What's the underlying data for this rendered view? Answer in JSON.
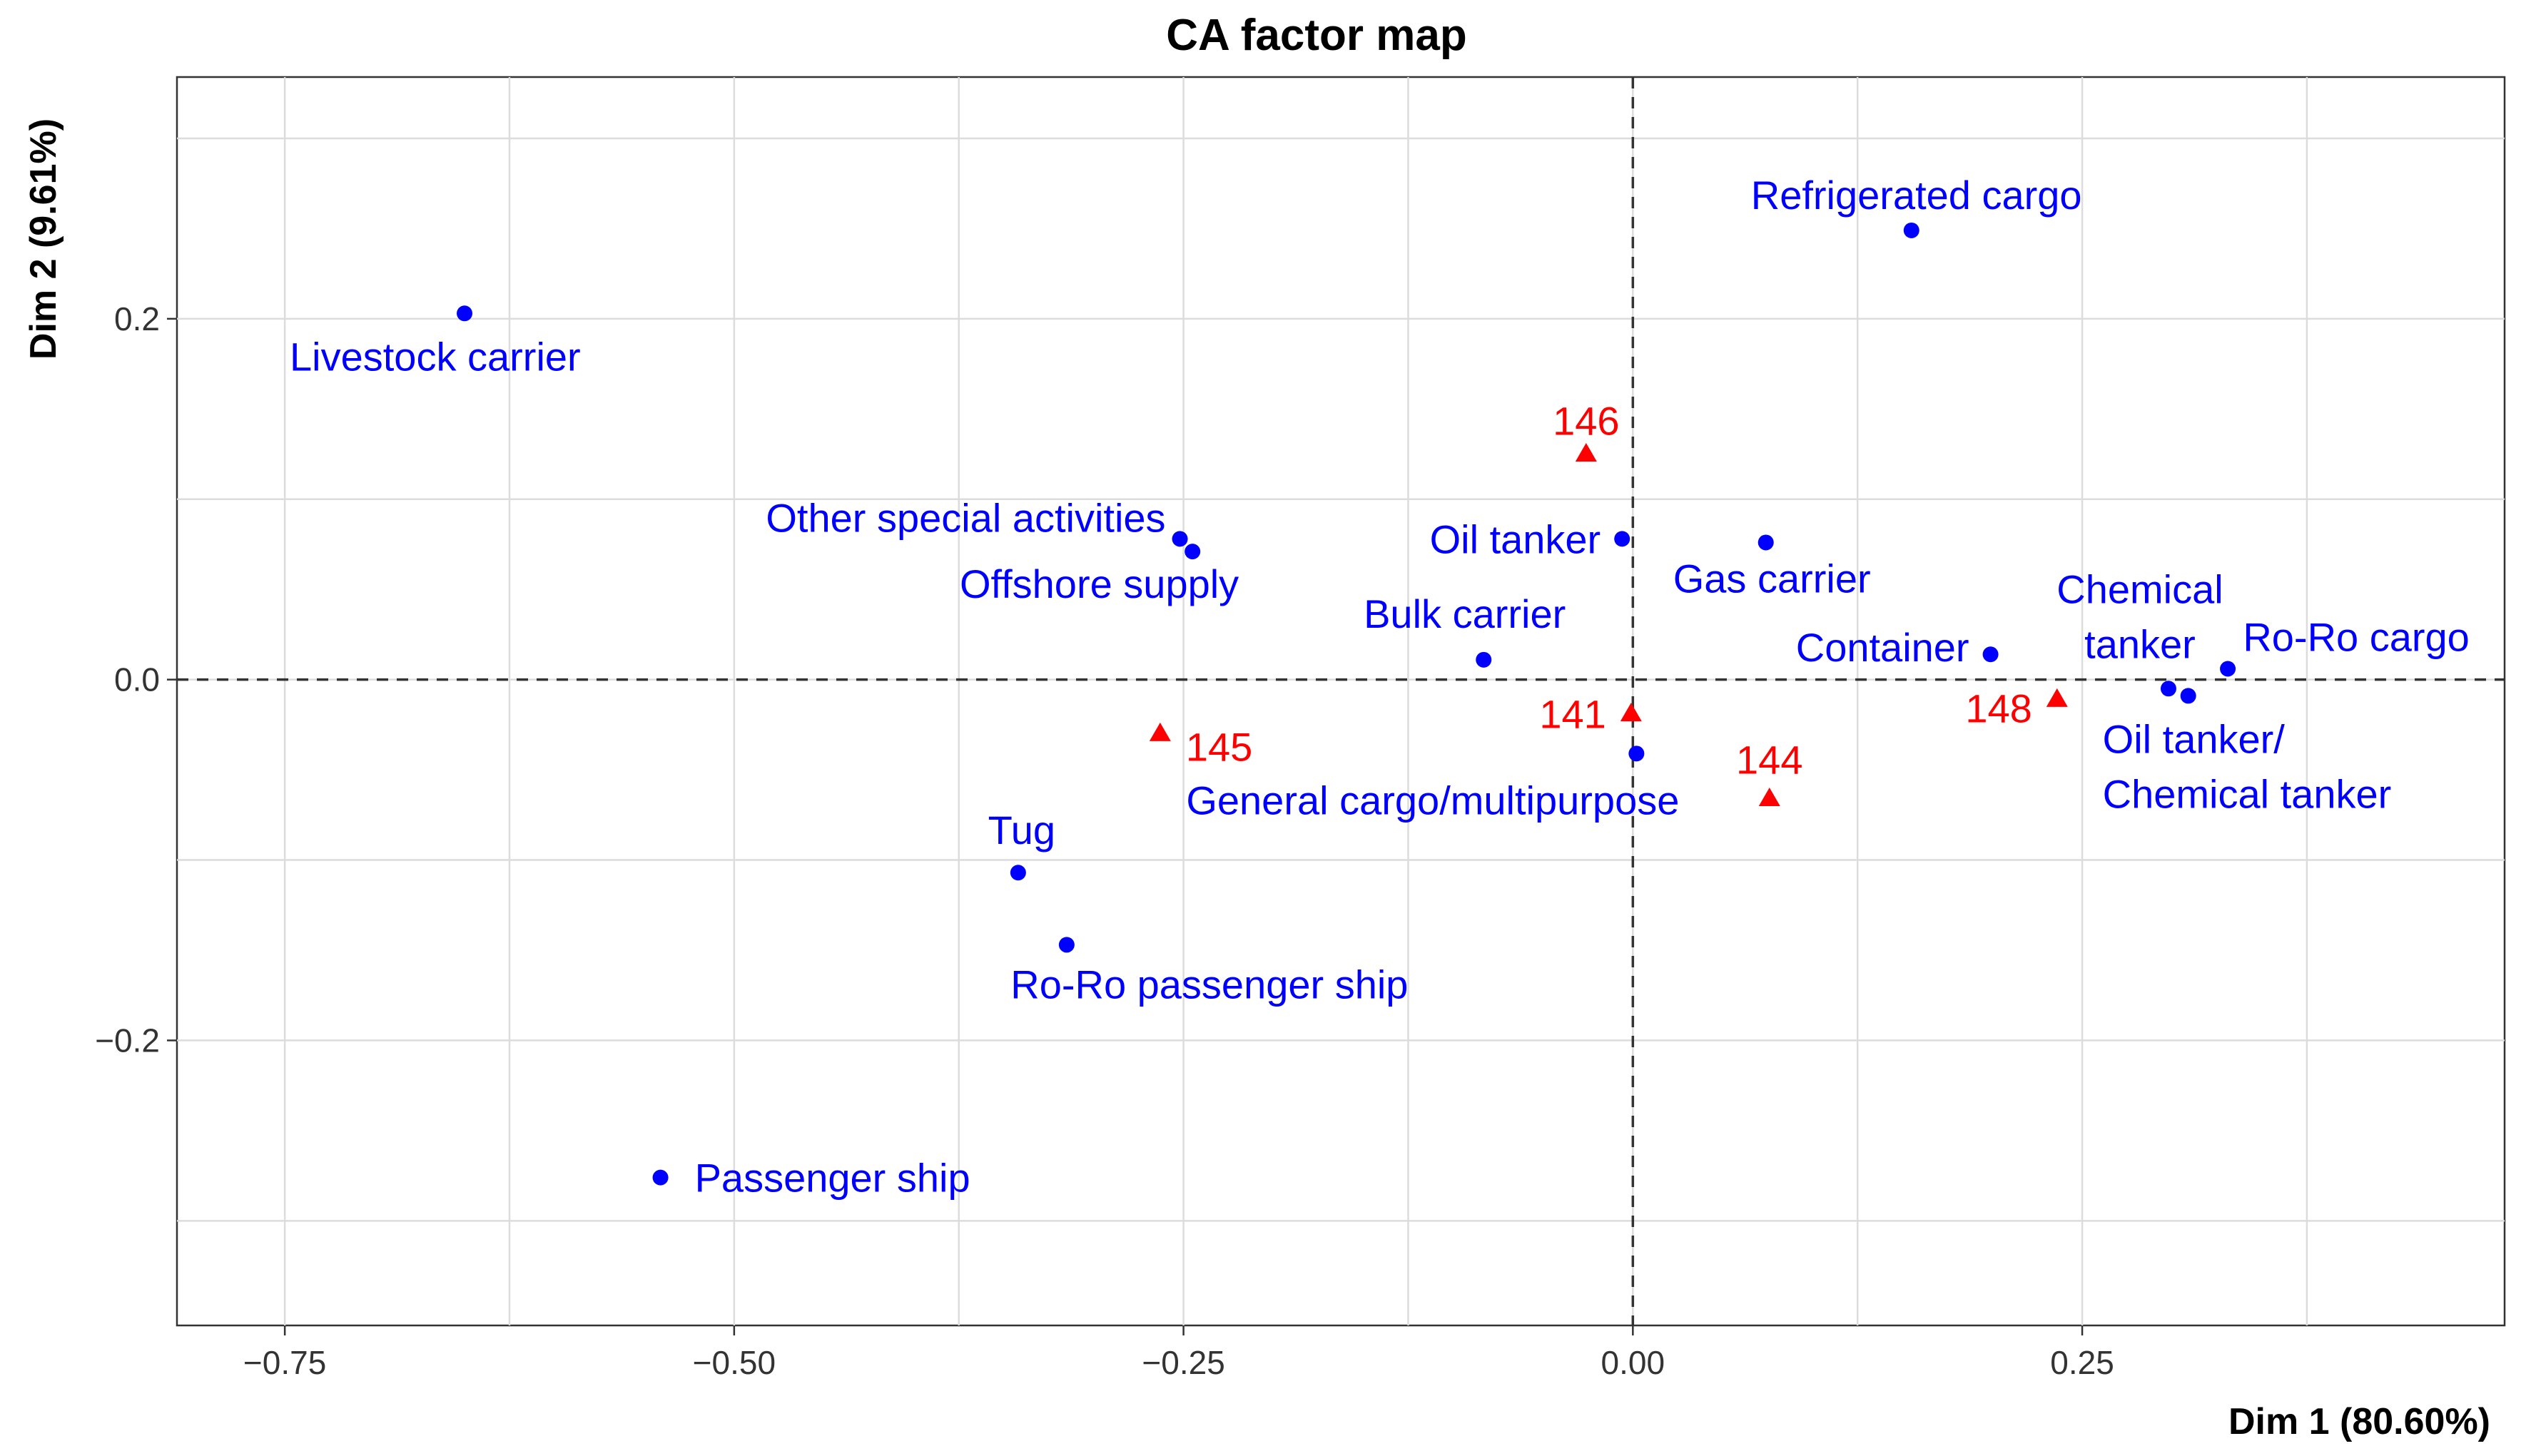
{
  "chart_data": {
    "type": "scatter",
    "title": "CA factor map",
    "xlabel": "Dim 1 (80.60%)",
    "ylabel": "Dim 2 (9.61%)",
    "xlim": [
      -0.81,
      0.485
    ],
    "ylim": [
      -0.358,
      0.334
    ],
    "x_ticks": [
      -0.75,
      -0.5,
      -0.25,
      0.0,
      0.25
    ],
    "x_tick_labels": [
      "−0.75",
      "−0.50",
      "−0.25",
      "0.00",
      "0.25"
    ],
    "y_ticks": [
      -0.2,
      0.0,
      0.2
    ],
    "y_tick_labels": [
      "−0.2",
      "0.0",
      "0.2"
    ],
    "grid": true,
    "reference_lines": {
      "x": 0,
      "y": 0,
      "style": "dashed"
    },
    "series": [
      {
        "marker": "circle",
        "color": "#0000ff",
        "points": [
          {
            "x": -0.65,
            "y": 0.203,
            "label": "Livestock carrier"
          },
          {
            "x": 0.155,
            "y": 0.249,
            "label": "Refrigerated cargo"
          },
          {
            "x": -0.252,
            "y": 0.078,
            "label": "Other special activities"
          },
          {
            "x": -0.245,
            "y": 0.071,
            "label": "Offshore supply"
          },
          {
            "x": -0.006,
            "y": 0.078,
            "label": "Oil tanker"
          },
          {
            "x": 0.074,
            "y": 0.076,
            "label": "Gas carrier"
          },
          {
            "x": -0.083,
            "y": 0.011,
            "label": "Bulk carrier"
          },
          {
            "x": 0.199,
            "y": 0.014,
            "label": "Container"
          },
          {
            "x": 0.298,
            "y": -0.005,
            "label": [
              "Chemical",
              "tanker"
            ]
          },
          {
            "x": 0.331,
            "y": 0.006,
            "label": "Ro-Ro cargo"
          },
          {
            "x": 0.309,
            "y": -0.009,
            "label": [
              "Oil tanker/",
              "Chemical tanker"
            ]
          },
          {
            "x": 0.002,
            "y": -0.041,
            "label": "General cargo/multipurpose"
          },
          {
            "x": -0.342,
            "y": -0.107,
            "label": "Tug"
          },
          {
            "x": -0.315,
            "y": -0.147,
            "label": "Ro-Ro passenger ship"
          },
          {
            "x": -0.541,
            "y": -0.276,
            "label": "Passenger ship"
          }
        ]
      },
      {
        "marker": "triangle",
        "color": "#ff0000",
        "points": [
          {
            "x": -0.026,
            "y": 0.125,
            "label": "146"
          },
          {
            "x": -0.263,
            "y": -0.03,
            "label": "145"
          },
          {
            "x": -0.001,
            "y": -0.019,
            "label": "141"
          },
          {
            "x": 0.076,
            "y": -0.066,
            "label": "144"
          },
          {
            "x": 0.236,
            "y": -0.011,
            "label": "148"
          }
        ]
      }
    ]
  }
}
